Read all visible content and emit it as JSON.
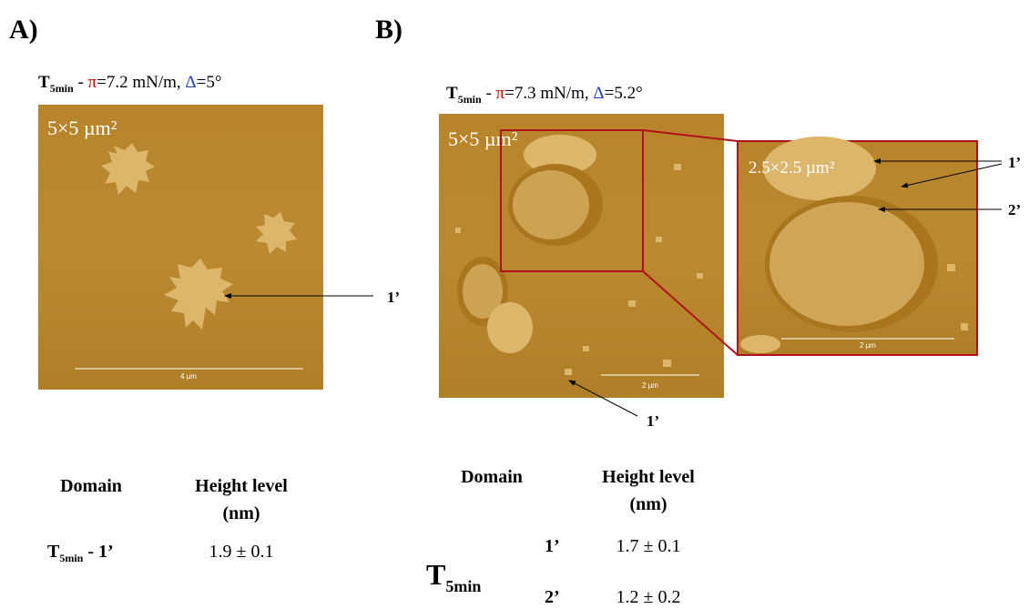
{
  "panels": [
    {
      "label": "A)",
      "caption": {
        "symbol": "T",
        "subscript": "5min",
        "sep": " - ",
        "pi": "π",
        "pressure": "=7.2 mN/m, ",
        "delta": "Δ",
        "angle": "=5°"
      },
      "image": {
        "size_label": "5×5 µm²",
        "scale_label": "4 µm"
      },
      "annotations": [
        "1’"
      ],
      "table": {
        "headers": [
          "Domain",
          "Height level",
          "(nm)"
        ],
        "rows": [
          {
            "symbol": "T",
            "subscript": "5min",
            "suffix": " - 1’",
            "height": "1.9 ± 0.1"
          }
        ]
      }
    },
    {
      "label": "B)",
      "caption": {
        "symbol": "T",
        "subscript": "5min",
        "sep": " - ",
        "pi": "π",
        "pressure": "=7.3 mN/m, ",
        "delta": "Δ",
        "angle": "=5.2°"
      },
      "image": {
        "size_label": "5×5 µm²",
        "scale_label": "2 µm"
      },
      "inset": {
        "size_label": "2.5×2.5 µm²",
        "scale_label": "2 µm",
        "annotations": [
          "1’",
          "2’"
        ]
      },
      "annotations": [
        "1’"
      ],
      "table": {
        "headers": [
          "Domain",
          "Height level",
          "(nm)"
        ],
        "group": {
          "symbol": "T",
          "subscript": "5min"
        },
        "rows": [
          {
            "domain": "1’",
            "height": "1.7 ± 0.1"
          },
          {
            "domain": "2’",
            "height": "1.2 ± 0.2"
          }
        ]
      }
    }
  ]
}
